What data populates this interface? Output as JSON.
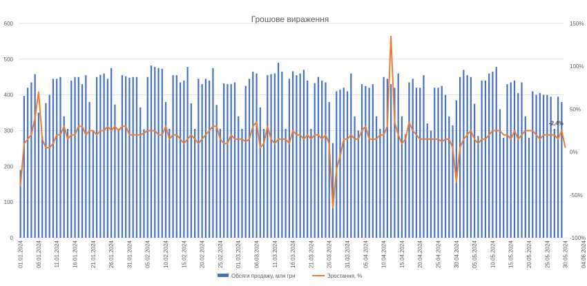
{
  "chart_data": {
    "type": "bar",
    "title": "Грошове вираження",
    "xlabel": "",
    "ylabel": "",
    "ylim": [
      0,
      600
    ],
    "y2lim": [
      -100,
      150
    ],
    "yticks": [
      "0",
      "100",
      "200",
      "300",
      "400",
      "500",
      "600"
    ],
    "y2ticks": [
      "-100%",
      "-50%",
      "0%",
      "50%",
      "100%",
      "150%"
    ],
    "grid": true,
    "legend_position": "bottom",
    "colors": {
      "bar": "#4472C4",
      "line": "#ED7D31",
      "grid": "#D9D9D9",
      "text": "#595959"
    },
    "x_start": "01.01.2024",
    "x_tick_labels": [
      "01.01.2024",
      "06.01.2024",
      "11.01.2024",
      "16.01.2024",
      "21.01.2024",
      "26.01.2024",
      "31.01.2024",
      "05.02.2024",
      "10.02.2024",
      "15.02.2024",
      "20.02.2024",
      "25.02.2024",
      "01.03.2024",
      "06.03.2024",
      "11.03.2024",
      "16.03.2024",
      "21.03.2024",
      "26.03.2024",
      "31.03.2024",
      "05.04.2024",
      "10.04.2024",
      "15.04.2024",
      "20.04.2024",
      "25.04.2024",
      "30.04.2024",
      "05.05.2024",
      "10.05.2024",
      "15.05.2024",
      "20.05.2024",
      "25.05.2024",
      "30.05.2024",
      "04.06.2024"
    ],
    "series": [
      {
        "name": "Обсяги продажу, млн грн",
        "type": "bar",
        "axis": "left",
        "values": [
          190,
          397,
          420,
          435,
          458,
          350,
          285,
          377,
          400,
          445,
          445,
          450,
          340,
          305,
          440,
          450,
          450,
          430,
          455,
          380,
          300,
          450,
          456,
          460,
          445,
          475,
          373,
          305,
          455,
          452,
          448,
          450,
          450,
          365,
          304,
          450,
          482,
          478,
          475,
          473,
          380,
          305,
          455,
          455,
          435,
          440,
          478,
          376,
          305,
          445,
          430,
          445,
          440,
          475,
          372,
          305,
          432,
          430,
          430,
          435,
          340,
          305,
          425,
          445,
          465,
          460,
          365,
          305,
          455,
          458,
          460,
          490,
          465,
          305,
          445,
          466,
          455,
          460,
          470,
          440,
          305,
          433,
          450,
          440,
          435,
          380,
          265,
          410,
          415,
          420,
          410,
          460,
          340,
          300,
          430,
          425,
          420,
          430,
          340,
          305,
          450,
          445,
          430,
          420,
          460,
          340,
          290,
          435,
          445,
          420,
          420,
          455,
          320,
          300,
          420,
          420,
          425,
          400,
          340,
          315,
          385,
          450,
          470,
          455,
          450,
          375,
          285,
          440,
          440,
          460,
          465,
          478,
          360,
          280,
          430,
          435,
          440,
          405,
          435,
          340,
          280,
          410,
          400,
          405,
          400,
          400,
          395,
          305,
          395,
          380
        ]
      },
      {
        "name": "Зростання, %",
        "type": "line",
        "axis": "right",
        "values": [
          -40,
          10,
          15,
          20,
          40,
          70,
          15,
          5,
          5,
          10,
          20,
          20,
          30,
          15,
          20,
          20,
          30,
          30,
          20,
          25,
          25,
          20,
          25,
          25,
          30,
          25,
          30,
          25,
          30,
          30,
          20,
          20,
          20,
          20,
          22,
          25,
          25,
          25,
          20,
          20,
          30,
          15,
          20,
          20,
          15,
          10,
          15,
          20,
          15,
          10,
          15,
          20,
          25,
          30,
          30,
          15,
          10,
          10,
          20,
          15,
          15,
          15,
          12,
          15,
          30,
          35,
          5,
          10,
          30,
          15,
          10,
          15,
          15,
          15,
          10,
          25,
          20,
          20,
          15,
          20,
          15,
          20,
          20,
          15,
          20,
          10,
          -65,
          -20,
          -5,
          15,
          15,
          20,
          15,
          15,
          25,
          30,
          15,
          15,
          15,
          20,
          20,
          30,
          135,
          35,
          20,
          10,
          15,
          35,
          25,
          20,
          15,
          15,
          15,
          15,
          15,
          15,
          12,
          15,
          15,
          5,
          -35,
          5,
          15,
          20,
          25,
          15,
          10,
          15,
          15,
          20,
          25,
          25,
          25,
          20,
          20,
          15,
          25,
          15,
          20,
          25,
          25,
          25,
          20,
          15,
          20,
          20,
          20,
          20,
          15,
          25,
          5
        ]
      }
    ],
    "annotation": "-2,4%"
  }
}
